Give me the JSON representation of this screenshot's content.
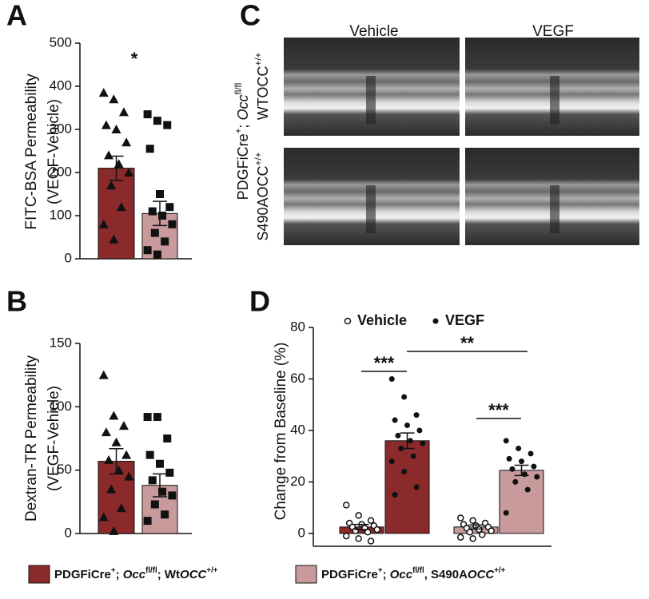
{
  "chart_data": [
    {
      "type": "bar",
      "panel": "A",
      "ylabel": [
        "FITC-BSA Permeability",
        "(VEGF-Vehicle)"
      ],
      "categories": [
        null,
        null
      ],
      "colors": [
        "#8b2a2a",
        "#c99a9c"
      ],
      "markers": [
        "triangle",
        "square"
      ],
      "values": [
        210,
        105
      ],
      "errors": [
        28,
        28
      ],
      "points": [
        [
          385,
          370,
          340,
          310,
          300,
          270,
          240,
          220,
          200,
          170,
          120,
          80,
          45
        ],
        [
          335,
          320,
          310,
          255,
          150,
          120,
          110,
          100,
          80,
          60,
          40,
          20,
          10
        ]
      ],
      "ylim": [
        0,
        500
      ],
      "yticks": [
        0,
        100,
        200,
        300,
        400,
        500
      ],
      "annotations": [
        "*"
      ]
    },
    {
      "type": "bar",
      "panel": "B",
      "ylabel": [
        "Dextran-TR Permeability",
        "(VEGF-Vehicle)"
      ],
      "categories": [
        null,
        null
      ],
      "colors": [
        "#8b2a2a",
        "#c99a9c"
      ],
      "markers": [
        "triangle",
        "square"
      ],
      "values": [
        57,
        38
      ],
      "errors": [
        10,
        9
      ],
      "points": [
        [
          125,
          93,
          85,
          80,
          72,
          62,
          58,
          50,
          45,
          35,
          20,
          13,
          2
        ],
        [
          92,
          92,
          75,
          62,
          55,
          48,
          42,
          33,
          30,
          23,
          15,
          10
        ]
      ],
      "ylim": [
        0,
        150
      ],
      "yticks": [
        0,
        50,
        100,
        150
      ],
      "annotations": []
    },
    {
      "type": "bar",
      "panel": "D",
      "ylabel": [
        "Change from Baseline (%)"
      ],
      "categories": [
        null,
        null,
        null,
        null
      ],
      "colors": [
        "#8b2a2a",
        "#8b2a2a",
        "#c99a9c",
        "#c99a9c"
      ],
      "markers": [
        "open-circle",
        "filled-circle",
        "open-circle",
        "filled-circle"
      ],
      "legend": [
        {
          "name": "Vehicle",
          "marker": "open-circle"
        },
        {
          "name": "VEGF",
          "marker": "filled-circle"
        }
      ],
      "values": [
        2.5,
        36,
        2.5,
        24.5
      ],
      "errors": [
        1,
        3,
        0.8,
        2
      ],
      "points": [
        [
          11,
          7,
          5,
          4,
          3.5,
          3,
          2.5,
          2,
          1.5,
          1,
          0.5,
          -1,
          -2,
          -3
        ],
        [
          60,
          53,
          46,
          44,
          42,
          40,
          38,
          36,
          35,
          33,
          30,
          28,
          24,
          18,
          15
        ],
        [
          6,
          5,
          4,
          3.5,
          3,
          2.5,
          2,
          1.5,
          1,
          0.5,
          -0.5,
          -1.5,
          -2
        ],
        [
          36,
          33,
          31,
          29,
          28,
          26,
          25,
          23,
          22,
          20,
          17,
          8
        ]
      ],
      "ylim": [
        -5,
        80
      ],
      "yticks": [
        0,
        20,
        40,
        60,
        80
      ],
      "annotations": [
        "***",
        "**",
        "***"
      ]
    }
  ],
  "panel_c": {
    "letter": "C",
    "columns": [
      "Vehicle",
      "VEGF"
    ],
    "shared_row_label": [
      {
        "text": "PDGFiCre"
      },
      {
        "text": "+",
        "sup": true
      },
      {
        "text": "; "
      },
      {
        "text": "Occ",
        "italic": true
      },
      {
        "text": "fl/fl",
        "sup": true
      }
    ],
    "rows": [
      [
        {
          "text": "WTOCC"
        },
        {
          "text": "+/+",
          "sup": true
        }
      ],
      [
        {
          "text": "S490AOCC"
        },
        {
          "text": "+/+",
          "sup": true
        }
      ]
    ]
  },
  "legend": [
    {
      "color": "#8b2a2a",
      "label": [
        {
          "text": "PDGFiCre"
        },
        {
          "text": "+",
          "sup": true
        },
        {
          "text": "; "
        },
        {
          "text": "Occ",
          "italic": true
        },
        {
          "text": "fl/fl",
          "sup": true
        },
        {
          "text": "; Wt"
        },
        {
          "text": "OCC",
          "italic": true
        },
        {
          "text": "+/+",
          "sup": true
        }
      ]
    },
    {
      "color": "#c99a9c",
      "label": [
        {
          "text": "PDGFiCre"
        },
        {
          "text": "+",
          "sup": true
        },
        {
          "text": "; "
        },
        {
          "text": "Occ",
          "italic": true
        },
        {
          "text": "fl/fl",
          "sup": true
        },
        {
          "text": ", S490A"
        },
        {
          "text": "OCC",
          "italic": true
        },
        {
          "text": "+/+",
          "sup": true
        }
      ]
    }
  ]
}
